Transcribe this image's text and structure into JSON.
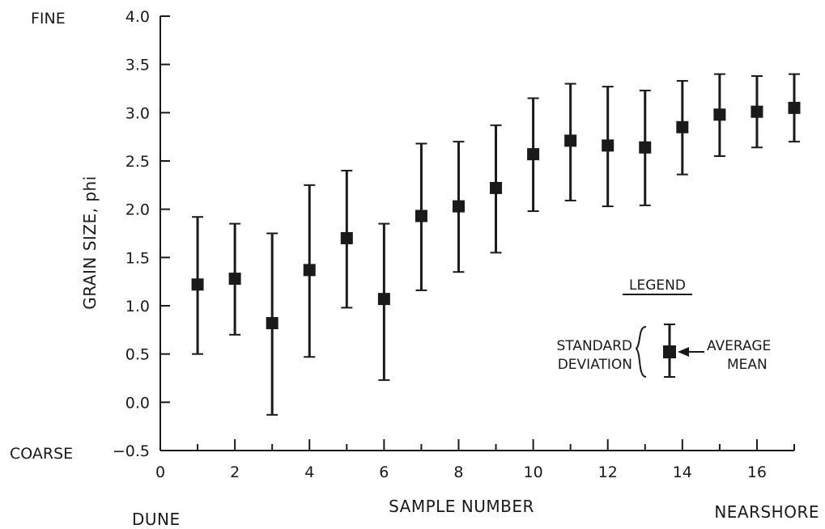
{
  "chart_data": {
    "type": "scatter",
    "title": "",
    "xlabel": "SAMPLE NUMBER",
    "ylabel": "GRAIN SIZE, phi",
    "xlim": [
      0,
      17
    ],
    "ylim": [
      -0.5,
      4.0
    ],
    "x_ticks": [
      "0",
      "2",
      "4",
      "6",
      "8",
      "10",
      "12",
      "14",
      "16"
    ],
    "y_ticks": [
      "-0.5",
      "0.0",
      "0.5",
      "1.0",
      "1.5",
      "2.0",
      "2.5",
      "3.0",
      "3.5",
      "4.0"
    ],
    "y_end_labels": {
      "top": "FINE",
      "bottom": "COARSE"
    },
    "x_end_labels": {
      "left": "DUNE",
      "right": "NEARSHORE"
    },
    "grid": false,
    "series": [
      {
        "x": [
          1,
          2,
          3,
          4,
          5,
          6,
          7,
          8,
          9,
          10,
          11,
          12,
          13,
          14,
          15,
          16,
          17
        ],
        "mean": [
          1.22,
          1.28,
          0.82,
          1.37,
          1.7,
          1.07,
          1.93,
          2.03,
          2.22,
          2.57,
          2.71,
          2.66,
          2.64,
          2.85,
          2.98,
          3.01,
          3.05
        ],
        "upper": [
          1.92,
          1.85,
          1.75,
          2.25,
          2.4,
          1.85,
          2.68,
          2.7,
          2.87,
          3.15,
          3.3,
          3.27,
          3.23,
          3.33,
          3.4,
          3.38,
          3.4
        ],
        "lower": [
          0.5,
          0.7,
          -0.13,
          0.47,
          0.98,
          0.23,
          1.16,
          1.35,
          1.55,
          1.98,
          2.09,
          2.03,
          2.04,
          2.36,
          2.55,
          2.64,
          2.7
        ]
      }
    ],
    "legend": {
      "title": "LEGEND",
      "left_line1": "STANDARD",
      "left_line2": "DEVIATION",
      "right_line1": "AVERAGE",
      "right_line2": "MEAN",
      "placement": "lower-right"
    }
  }
}
